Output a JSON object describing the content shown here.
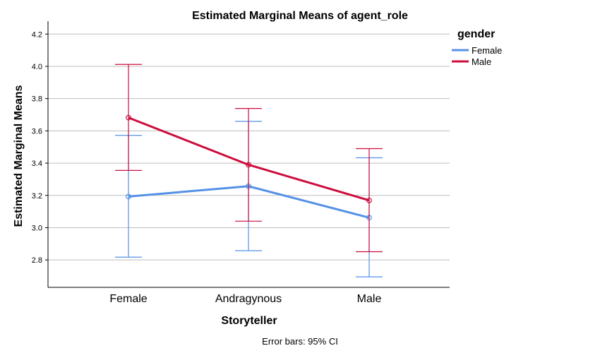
{
  "chart_data": {
    "type": "line",
    "title": "Estimated Marginal Means of agent_role",
    "xlabel": "Storyteller",
    "ylabel": "Estimated Marginal Means",
    "categories": [
      "Female",
      "Andragynous",
      "Male"
    ],
    "ylim": [
      2.63,
      4.28
    ],
    "yticks": [
      "2.8",
      "3.0",
      "3.2",
      "3.4",
      "3.6",
      "3.8",
      "4.0",
      "4.2"
    ],
    "grid": true,
    "legend": {
      "title": "gender",
      "position": "top-right"
    },
    "series": [
      {
        "name": "Female",
        "color": "#5591e6",
        "values": [
          3.193,
          3.257,
          3.062
        ],
        "ci_lower": [
          2.817,
          2.857,
          2.695
        ],
        "ci_upper": [
          3.572,
          3.659,
          3.433
        ]
      },
      {
        "name": "Male",
        "color": "#cc0e3d",
        "values": [
          3.682,
          3.39,
          3.169
        ],
        "ci_lower": [
          3.355,
          3.04,
          2.851
        ],
        "ci_upper": [
          4.012,
          3.739,
          3.49
        ]
      }
    ],
    "footnote": "Error bars: 95% CI"
  }
}
